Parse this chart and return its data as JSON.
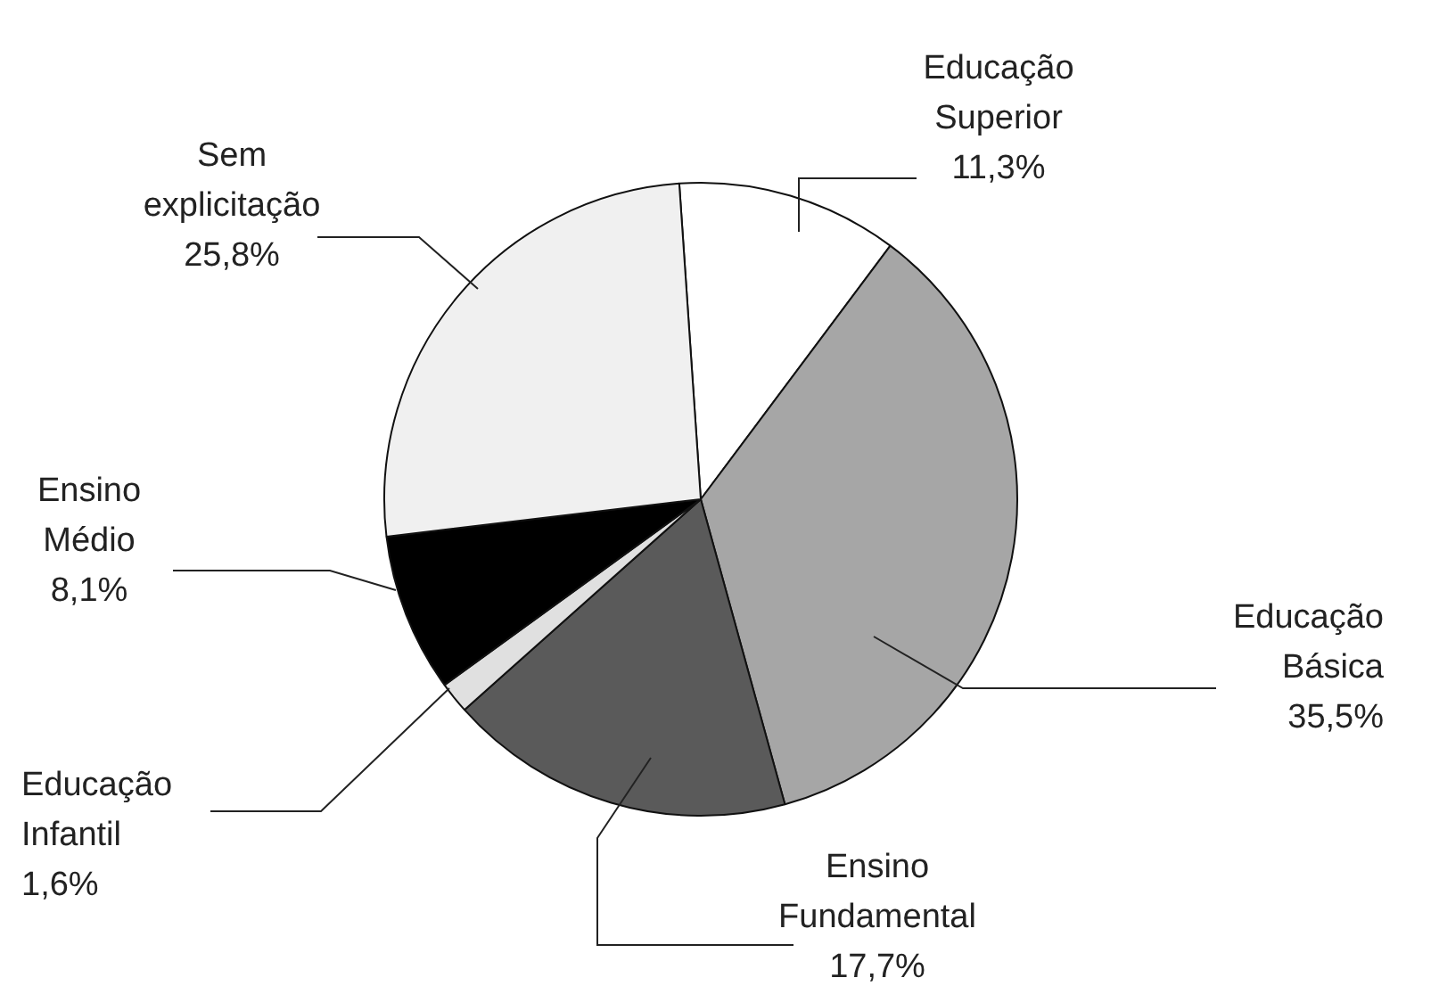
{
  "chart_data": {
    "type": "pie",
    "categories": [
      "Educação Superior",
      "Educação Básica",
      "Ensino Fundamental",
      "Educação Infantil",
      "Ensino Médio",
      "Sem explicitação"
    ],
    "values": [
      11.3,
      35.5,
      17.7,
      1.6,
      8.1,
      25.8
    ],
    "value_labels": [
      "11,3%",
      "35,5%",
      "17,7%",
      "1,6%",
      "8,1%",
      "25,8%"
    ],
    "colors": [
      "#ffffff",
      "#a6a6a6",
      "#5a5a5a",
      "#e0e0e0",
      "#000000",
      "#f0f0f0"
    ],
    "legend": false
  }
}
